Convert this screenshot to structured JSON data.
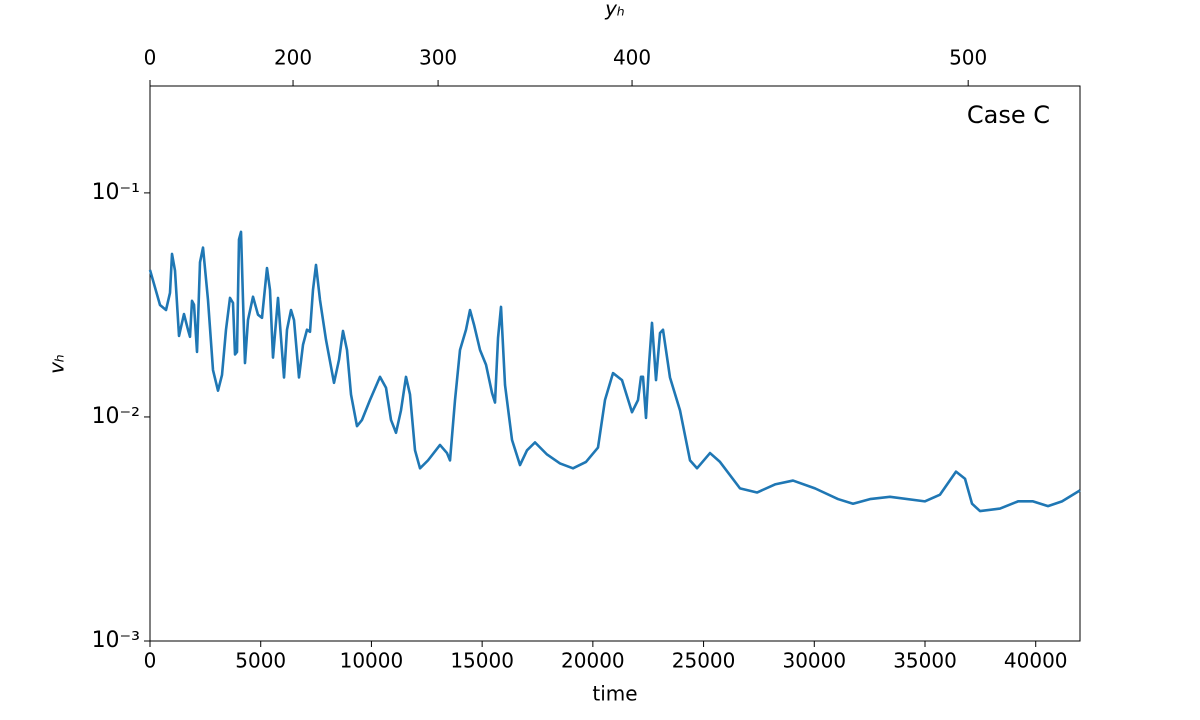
{
  "chart_data": {
    "type": "line",
    "color": "#1f77b4",
    "xlabel": "time",
    "ylabel": "vₕ",
    "x2label": "yₕ",
    "annotation": "Case C",
    "xlim": [
      0,
      42000
    ],
    "xticks": [
      0,
      5000,
      10000,
      15000,
      20000,
      25000,
      30000,
      35000,
      40000
    ],
    "ylim": [
      0.001,
      0.3
    ],
    "ylog": true,
    "yticks": [
      {
        "value": 0.001,
        "label": "10⁻³"
      },
      {
        "value": 0.01,
        "label": "10⁻²"
      },
      {
        "value": 0.1,
        "label": "10⁻¹"
      }
    ],
    "x2ticks": [
      0,
      200,
      300,
      400,
      500
    ],
    "x2tick_time": [
      0,
      6460,
      13010,
      21770,
      36950
    ],
    "x": [
      0,
      452,
      723,
      903,
      994,
      1129,
      1310,
      1535,
      1716,
      1806,
      1897,
      1987,
      2123,
      2258,
      2394,
      2619,
      2845,
      3071,
      3252,
      3432,
      3613,
      3748,
      3839,
      3929,
      4019,
      4110,
      4200,
      4290,
      4426,
      4652,
      4877,
      5058,
      5284,
      5419,
      5555,
      5781,
      5916,
      6052,
      6187,
      6368,
      6503,
      6729,
      6910,
      7090,
      7226,
      7361,
      7497,
      7677,
      7948,
      8310,
      8536,
      8716,
      8897,
      9078,
      9348,
      9574,
      9935,
      10387,
      10658,
      10884,
      11110,
      11335,
      11561,
      11742,
      11968,
      12194,
      12555,
      13097,
      13413,
      13549,
      13775,
      14000,
      14271,
      14452,
      14633,
      14904,
      15175,
      15446,
      15581,
      15717,
      15852,
      16033,
      16349,
      16710,
      17026,
      17387,
      17929,
      18516,
      19103,
      19690,
      20232,
      20548,
      20910,
      21316,
      21768,
      22039,
      22174,
      22265,
      22400,
      22535,
      22671,
      22852,
      23033,
      23168,
      23484,
      23936,
      24388,
      24704,
      25291,
      25742,
      26645,
      27413,
      28226,
      29039,
      30032,
      31071,
      31749,
      32516,
      33420,
      35000,
      35678,
      36400,
      36807,
      37123,
      37485,
      38388,
      39200,
      39878,
      40555,
      41187,
      42000
    ],
    "values": [
      0.0453,
      0.0316,
      0.03,
      0.0358,
      0.0534,
      0.045,
      0.023,
      0.0288,
      0.0245,
      0.0228,
      0.033,
      0.0317,
      0.0195,
      0.049,
      0.057,
      0.0333,
      0.0162,
      0.0131,
      0.0154,
      0.0245,
      0.034,
      0.0323,
      0.019,
      0.0195,
      0.062,
      0.067,
      0.0333,
      0.0174,
      0.0271,
      0.0344,
      0.0286,
      0.0277,
      0.0462,
      0.0369,
      0.0184,
      0.034,
      0.0225,
      0.015,
      0.0245,
      0.03,
      0.0271,
      0.015,
      0.021,
      0.0245,
      0.024,
      0.0369,
      0.0477,
      0.0333,
      0.0221,
      0.0142,
      0.018,
      0.0242,
      0.0199,
      0.0126,
      0.0091,
      0.0097,
      0.0119,
      0.0151,
      0.0135,
      0.0097,
      0.0085,
      0.0107,
      0.0151,
      0.0126,
      0.0071,
      0.0059,
      0.0064,
      0.0075,
      0.0069,
      0.0064,
      0.0119,
      0.0199,
      0.0245,
      0.03,
      0.0258,
      0.0199,
      0.0171,
      0.0128,
      0.0116,
      0.0225,
      0.031,
      0.0139,
      0.0079,
      0.0061,
      0.0071,
      0.0077,
      0.0068,
      0.0062,
      0.0059,
      0.0063,
      0.0073,
      0.0119,
      0.0157,
      0.0146,
      0.0105,
      0.0119,
      0.0151,
      0.0151,
      0.0099,
      0.0171,
      0.0263,
      0.0146,
      0.0237,
      0.0245,
      0.015,
      0.0107,
      0.0064,
      0.0059,
      0.0069,
      0.0063,
      0.0048,
      0.0046,
      0.005,
      0.0052,
      0.0048,
      0.0043,
      0.0041,
      0.0043,
      0.0044,
      0.0042,
      0.0045,
      0.0057,
      0.0053,
      0.0041,
      0.0038,
      0.0039,
      0.0042,
      0.0042,
      0.004,
      0.0042,
      0.0047
    ]
  }
}
